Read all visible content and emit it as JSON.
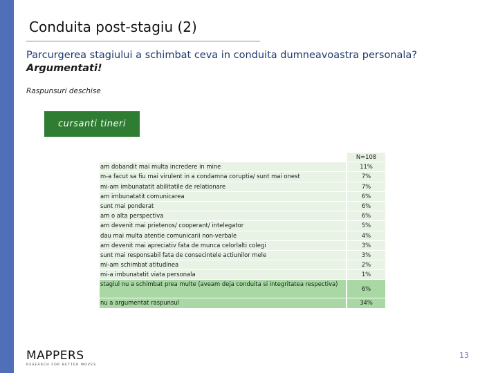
{
  "slide": {
    "title": "Conduita post-stagiu (2)",
    "question": "Parcurgerea stagiului a schimbat ceva in conduita dumneavoastra personala?",
    "question_emphasis": "Argumentati!",
    "subtitle": "Raspunsuri deschise",
    "group_tag": "cursanti tineri",
    "page_number": "13"
  },
  "logo": {
    "brand": "MAPPERS",
    "tagline": "RESEARCH FOR BETTER MOVES"
  },
  "table": {
    "header_value": "N=108",
    "rows": [
      {
        "label": "am dobandit mai multa incredere in mine",
        "value": "11%"
      },
      {
        "label": "m-a facut sa fiu mai virulent in a condamna coruptia/ sunt mai onest",
        "value": "7%"
      },
      {
        "label": "mi-am imbunatatit abilitatile de relationare",
        "value": "7%"
      },
      {
        "label": "am imbunatatit comunicarea",
        "value": "6%"
      },
      {
        "label": "sunt mai ponderat",
        "value": "6%"
      },
      {
        "label": "am o alta perspectiva",
        "value": "6%"
      },
      {
        "label": "am devenit mai prietenos/ cooperant/ intelegator",
        "value": "5%"
      },
      {
        "label": "dau mai multa atentie comunicarii non-verbale",
        "value": "4%"
      },
      {
        "label": "am devenit mai apreciativ fata de munca celorlalti colegi",
        "value": "3%"
      },
      {
        "label": "sunt mai responsabil fata de consecintele actiunilor mele",
        "value": "3%"
      },
      {
        "label": "mi-am schimbat atitudinea",
        "value": "2%"
      },
      {
        "label": "mi-a imbunatatit viata personala",
        "value": "1%"
      }
    ],
    "summary_rows": [
      {
        "label": "stagiul nu a schimbat prea multe (aveam deja conduita si integritatea respectiva)",
        "value": "6%"
      },
      {
        "label": "nu a argumentat raspunsul",
        "value": "34%"
      }
    ]
  }
}
